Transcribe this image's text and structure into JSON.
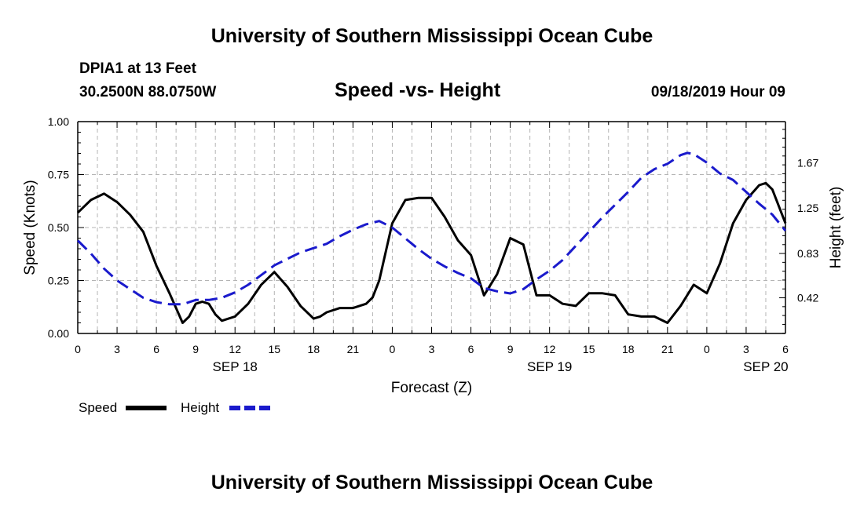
{
  "header": {
    "title": "University of Southern Mississippi Ocean Cube",
    "station": "DPIA1 at 13 Feet",
    "coords": "30.2500N 88.0750W",
    "plot_title": "Speed -vs- Height",
    "datetime": "09/18/2019 Hour 09"
  },
  "footer": {
    "title": "University of Southern Mississippi Ocean Cube"
  },
  "colors": {
    "speed": "#000000",
    "height": "#1a1acc",
    "grid": "#b4b4b4"
  },
  "chart_data": {
    "type": "line",
    "title": "Speed -vs- Height",
    "xlabel": "Forecast (Z)",
    "ylabel_left": "Speed (Knots)",
    "ylabel_right": "Height (feet)",
    "x_range_hours": [
      0,
      54
    ],
    "x_tick_step_hours": 1.5,
    "x_tick_labels": [
      "0",
      "3",
      "6",
      "9",
      "12",
      "15",
      "18",
      "21",
      "0",
      "3",
      "6",
      "9",
      "12",
      "15",
      "18",
      "21",
      "0",
      "3",
      "6"
    ],
    "day_labels": [
      {
        "label": "SEP 18",
        "hour": 12
      },
      {
        "label": "SEP 19",
        "hour": 36
      },
      {
        "label": "SEP 20",
        "hour": 52.5
      }
    ],
    "y_left": {
      "range": [
        0,
        1
      ],
      "ticks": [
        0,
        0.25,
        0.5,
        0.75,
        1
      ],
      "tick_labels": [
        "0.00",
        "0.25",
        "0.50",
        "0.75",
        "1.00"
      ]
    },
    "y_right": {
      "range": [
        0.09,
        2.05
      ],
      "ticks": [
        0.42,
        0.83,
        1.25,
        1.67
      ],
      "tick_labels": [
        "0.42",
        "0.83",
        "1.25",
        "1.67"
      ]
    },
    "legend": {
      "position": "bottom-left",
      "speed_label": "Speed",
      "height_label": "Height"
    },
    "series": [
      {
        "name": "Speed",
        "axis": "left",
        "style": "solid",
        "x": [
          0,
          1,
          2,
          3,
          4,
          5,
          6,
          7,
          8,
          8.5,
          9,
          9.5,
          10,
          10.5,
          11,
          11.5,
          12,
          13,
          14,
          15,
          16,
          17,
          18,
          18.5,
          19,
          20,
          21,
          22,
          22.5,
          23,
          24,
          25,
          26,
          27,
          28,
          29,
          30,
          31,
          32,
          33,
          34,
          35,
          36,
          37,
          38,
          39,
          40,
          41,
          42,
          43,
          44,
          45,
          46,
          47,
          47.5,
          48,
          49,
          50,
          51,
          52,
          52.5,
          53,
          54
        ],
        "y": [
          0.57,
          0.63,
          0.66,
          0.62,
          0.56,
          0.48,
          0.32,
          0.19,
          0.05,
          0.08,
          0.14,
          0.15,
          0.14,
          0.09,
          0.06,
          0.07,
          0.08,
          0.14,
          0.23,
          0.29,
          0.22,
          0.13,
          0.07,
          0.08,
          0.1,
          0.12,
          0.12,
          0.14,
          0.17,
          0.25,
          0.52,
          0.63,
          0.64,
          0.64,
          0.55,
          0.44,
          0.37,
          0.18,
          0.28,
          0.45,
          0.42,
          0.18,
          0.18,
          0.14,
          0.13,
          0.19,
          0.19,
          0.18,
          0.09,
          0.08,
          0.08,
          0.05,
          0.13,
          0.23,
          0.21,
          0.19,
          0.33,
          0.52,
          0.63,
          0.7,
          0.71,
          0.68,
          0.52
        ]
      },
      {
        "name": "Height",
        "axis": "right",
        "style": "dashed",
        "x": [
          0,
          1,
          2,
          3,
          4,
          5,
          6,
          7,
          8,
          9,
          10,
          11,
          12,
          13,
          14,
          15,
          16,
          17,
          18,
          19,
          20,
          21,
          22,
          23,
          24,
          25,
          26,
          27,
          28,
          29,
          30,
          31,
          32,
          33,
          34,
          35,
          36,
          37,
          38,
          39,
          40,
          41,
          42,
          43,
          44,
          45,
          46,
          46.5,
          47,
          48,
          49,
          50,
          51,
          52,
          53,
          54
        ],
        "y": [
          0.95,
          0.83,
          0.69,
          0.58,
          0.5,
          0.42,
          0.38,
          0.36,
          0.36,
          0.4,
          0.4,
          0.42,
          0.47,
          0.54,
          0.63,
          0.72,
          0.78,
          0.84,
          0.88,
          0.92,
          0.99,
          1.05,
          1.1,
          1.13,
          1.07,
          0.97,
          0.87,
          0.78,
          0.71,
          0.65,
          0.6,
          0.51,
          0.48,
          0.46,
          0.5,
          0.59,
          0.67,
          0.77,
          0.9,
          1.03,
          1.16,
          1.28,
          1.4,
          1.53,
          1.61,
          1.66,
          1.74,
          1.76,
          1.75,
          1.67,
          1.57,
          1.51,
          1.4,
          1.29,
          1.19,
          1.04
        ]
      }
    ]
  }
}
